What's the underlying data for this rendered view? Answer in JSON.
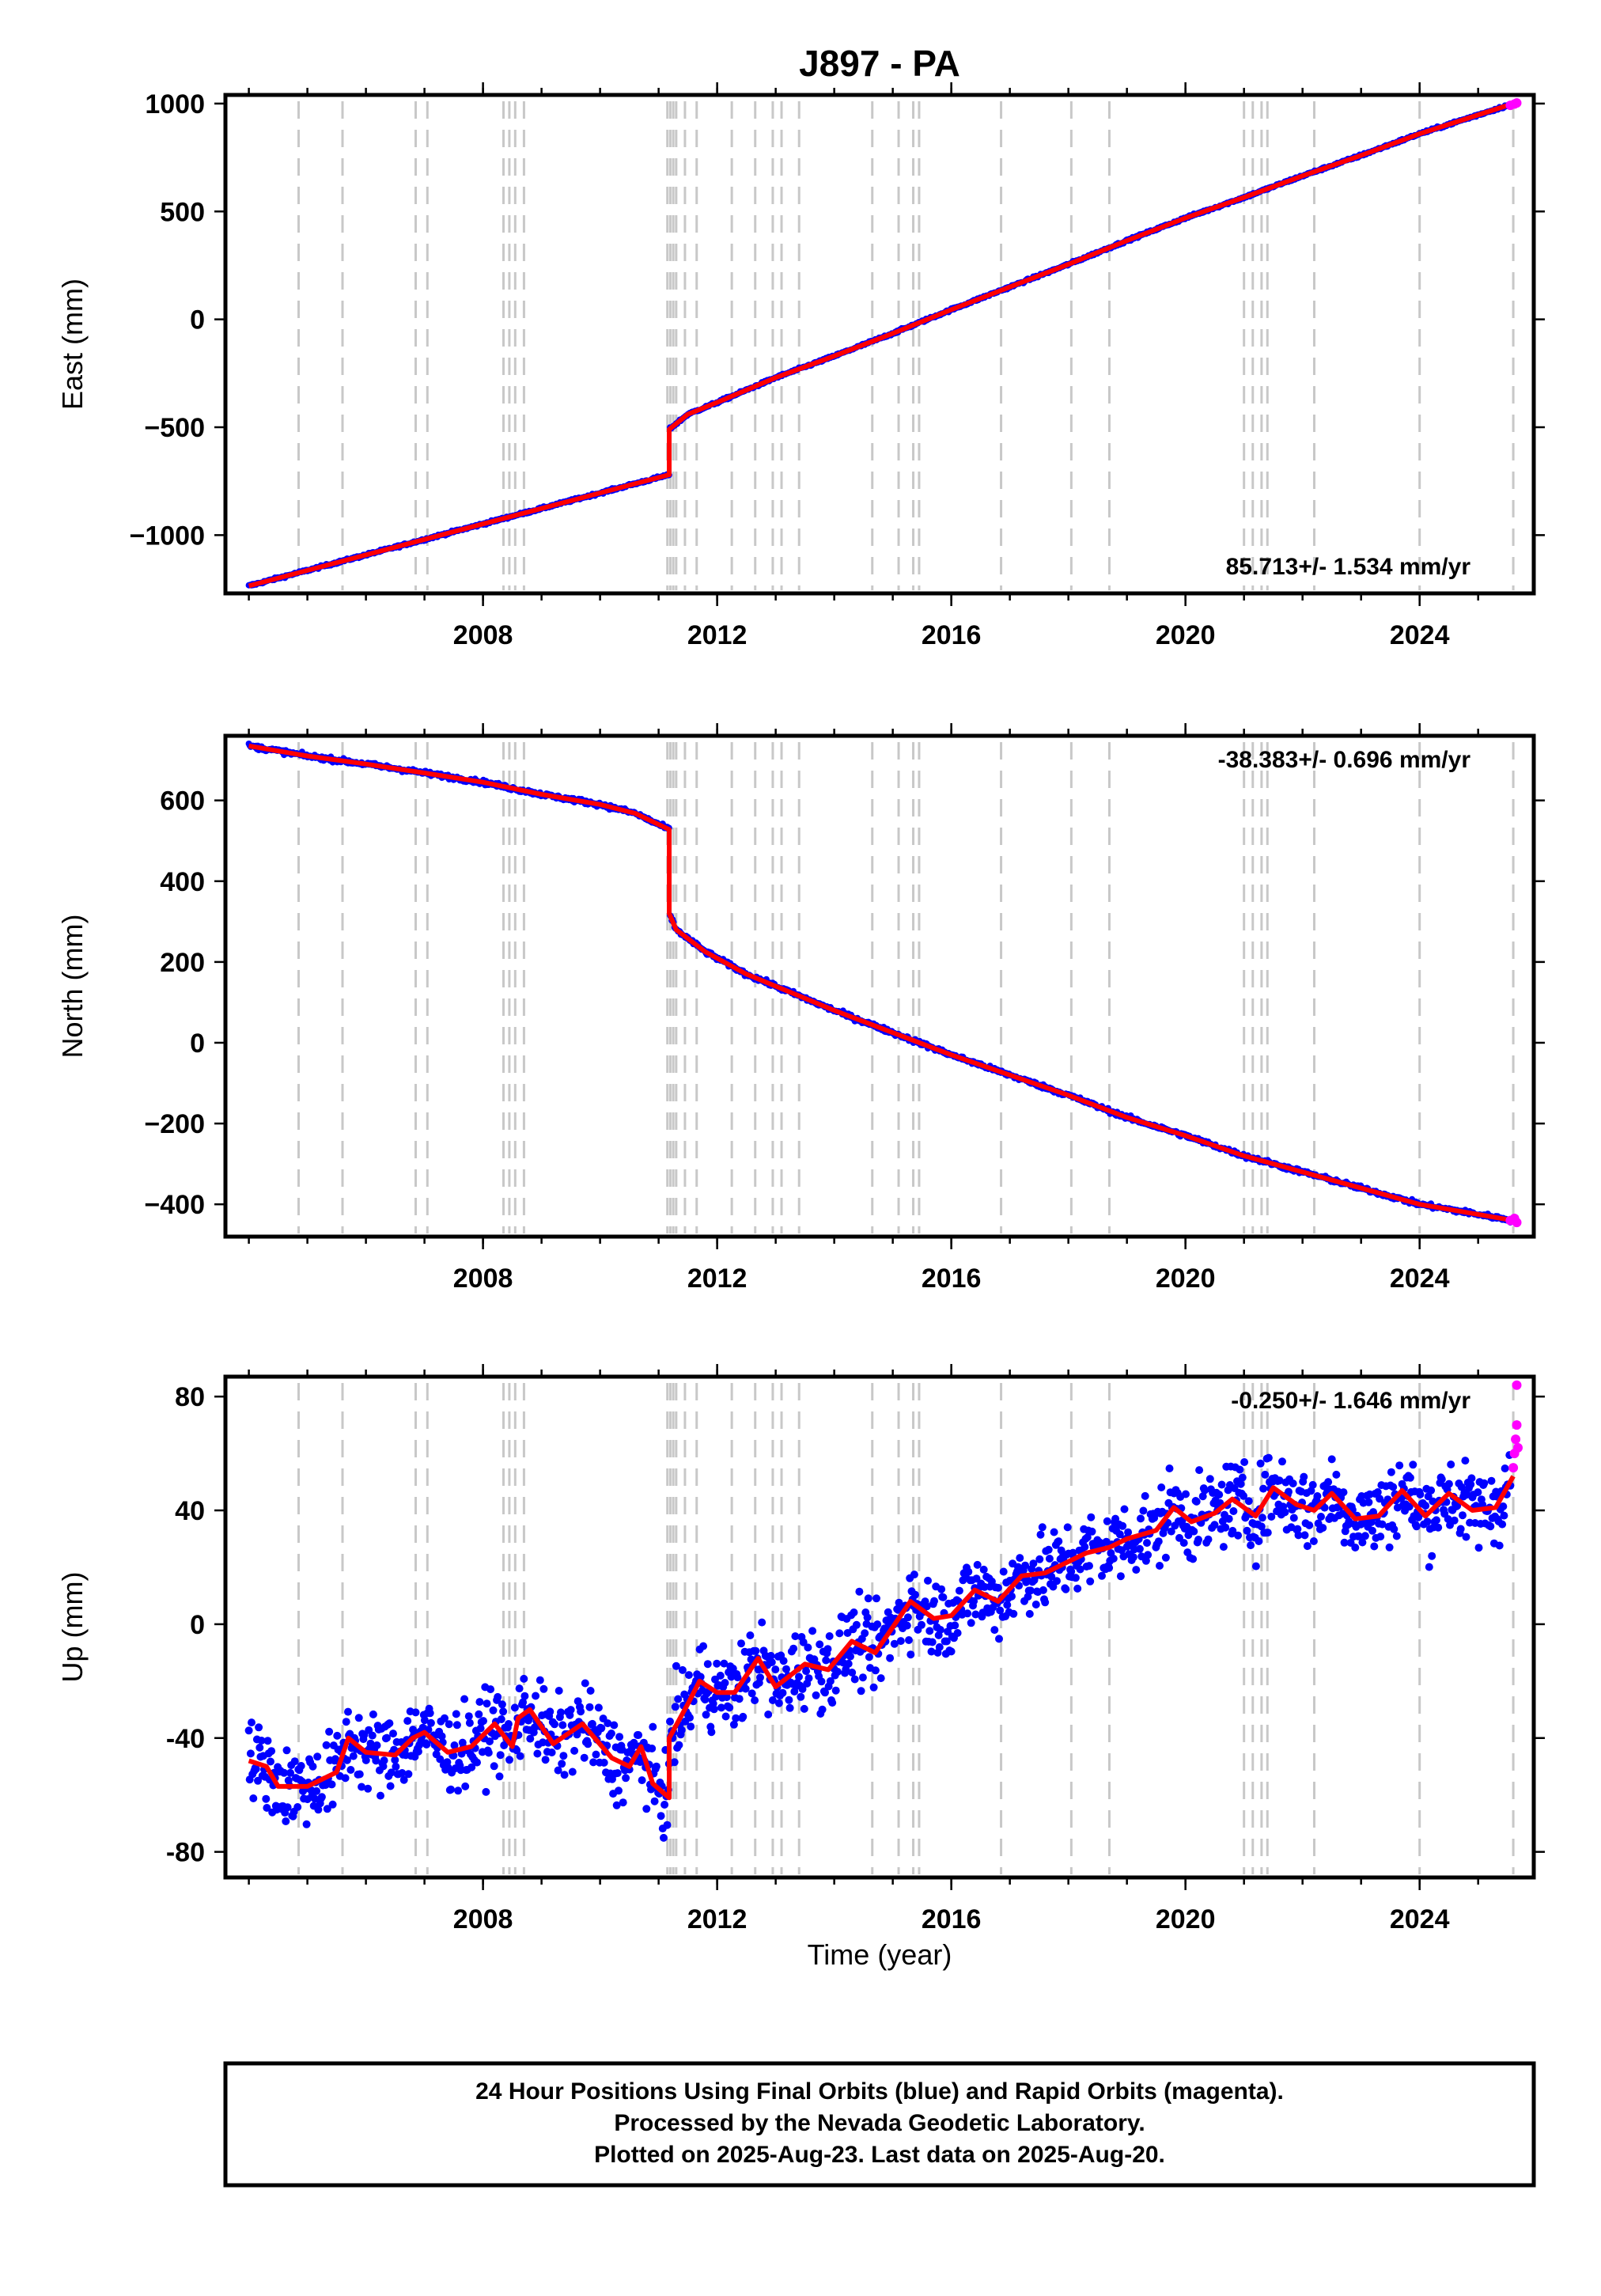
{
  "chart_data": {
    "type": "scatter",
    "title": "J897 - PA",
    "x_ticks": [
      2008,
      2012,
      2016,
      2020,
      2024
    ],
    "xlim": [
      2003.6,
      2025.95
    ],
    "xlabel": "Time (year)",
    "event_lines": [
      2004.85,
      2005.6,
      2006.85,
      2007.05,
      2008.35,
      2008.45,
      2008.55,
      2008.7,
      2011.15,
      2011.2,
      2011.25,
      2011.3,
      2011.45,
      2011.65,
      2012.25,
      2012.65,
      2012.95,
      2013.1,
      2013.4,
      2014.65,
      2015.1,
      2015.35,
      2015.45,
      2016.85,
      2018.05,
      2018.7,
      2021.0,
      2021.15,
      2021.3,
      2021.4,
      2022.2,
      2024.0,
      2025.6
    ],
    "panels": [
      {
        "name": "east",
        "ylabel": "East (mm)",
        "ylim": [
          -1270,
          1040
        ],
        "y_ticks": [
          1000,
          500,
          0,
          -500,
          -1000
        ],
        "y_tick_labels": [
          "1000",
          "500",
          "0",
          "−500",
          "−1000"
        ],
        "rate_label": "85.713+/- 1.534 mm/yr",
        "rate_position": "bottom-right",
        "model_points": [
          [
            2004.0,
            -1235
          ],
          [
            2011.18,
            -720
          ],
          [
            2011.18,
            -510
          ],
          [
            2011.5,
            -440
          ],
          [
            2012.0,
            -385
          ],
          [
            2013.0,
            -270
          ],
          [
            2014.0,
            -170
          ],
          [
            2015.0,
            -65
          ],
          [
            2016.0,
            45
          ],
          [
            2017.0,
            150
          ],
          [
            2018.0,
            255
          ],
          [
            2019.0,
            365
          ],
          [
            2020.0,
            470
          ],
          [
            2021.0,
            565
          ],
          [
            2022.0,
            665
          ],
          [
            2023.0,
            760
          ],
          [
            2024.0,
            860
          ],
          [
            2025.6,
            1000
          ]
        ],
        "rapid_points": [
          [
            2025.55,
            992
          ],
          [
            2025.62,
            998
          ],
          [
            2025.66,
            1003
          ]
        ]
      },
      {
        "name": "north",
        "ylabel": "North (mm)",
        "ylim": [
          -480,
          760
        ],
        "y_ticks": [
          600,
          400,
          200,
          0,
          -200,
          -400
        ],
        "y_tick_labels": [
          "600",
          "400",
          "200",
          "0",
          "−200",
          "−400"
        ],
        "rate_label": "-38.383+/- 0.696 mm/yr",
        "rate_position": "top-right",
        "model_points": [
          [
            2004.0,
            735
          ],
          [
            2005.0,
            710
          ],
          [
            2006.0,
            690
          ],
          [
            2007.0,
            668
          ],
          [
            2008.0,
            645
          ],
          [
            2009.0,
            615
          ],
          [
            2010.0,
            590
          ],
          [
            2010.6,
            568
          ],
          [
            2011.18,
            528
          ],
          [
            2011.18,
            320
          ],
          [
            2011.3,
            280
          ],
          [
            2011.8,
            225
          ],
          [
            2012.5,
            170
          ],
          [
            2013.0,
            140
          ],
          [
            2014.0,
            80
          ],
          [
            2015.0,
            25
          ],
          [
            2016.0,
            -30
          ],
          [
            2017.0,
            -80
          ],
          [
            2018.0,
            -130
          ],
          [
            2019.0,
            -185
          ],
          [
            2020.0,
            -230
          ],
          [
            2021.0,
            -280
          ],
          [
            2022.0,
            -320
          ],
          [
            2023.0,
            -360
          ],
          [
            2024.0,
            -400
          ],
          [
            2025.6,
            -440
          ]
        ],
        "rapid_points": [
          [
            2025.55,
            -440
          ],
          [
            2025.62,
            -435
          ],
          [
            2025.66,
            -445
          ]
        ]
      },
      {
        "name": "up",
        "ylabel": "Up (mm)",
        "ylim": [
          -89,
          87
        ],
        "y_ticks": [
          80,
          40,
          0,
          -40,
          -80
        ],
        "y_tick_labels": [
          "80",
          "40",
          "0",
          "-40",
          "-80"
        ],
        "rate_label": "-0.250+/- 1.646 mm/yr",
        "rate_position": "top-right",
        "model_points": [
          [
            2004.0,
            -48
          ],
          [
            2004.3,
            -50
          ],
          [
            2004.5,
            -57
          ],
          [
            2005.0,
            -57
          ],
          [
            2005.5,
            -52
          ],
          [
            2005.7,
            -40
          ],
          [
            2006.0,
            -45
          ],
          [
            2006.5,
            -46
          ],
          [
            2006.8,
            -40
          ],
          [
            2007.0,
            -38
          ],
          [
            2007.4,
            -45
          ],
          [
            2007.8,
            -43
          ],
          [
            2008.2,
            -35
          ],
          [
            2008.5,
            -43
          ],
          [
            2008.6,
            -33
          ],
          [
            2008.8,
            -30
          ],
          [
            2009.2,
            -42
          ],
          [
            2009.7,
            -35
          ],
          [
            2010.2,
            -47
          ],
          [
            2010.5,
            -50
          ],
          [
            2010.7,
            -43
          ],
          [
            2010.9,
            -56
          ],
          [
            2011.18,
            -61
          ],
          [
            2011.18,
            -40
          ],
          [
            2011.5,
            -28
          ],
          [
            2011.7,
            -20
          ],
          [
            2012.0,
            -24
          ],
          [
            2012.3,
            -24
          ],
          [
            2012.7,
            -12
          ],
          [
            2013.0,
            -22
          ],
          [
            2013.5,
            -14
          ],
          [
            2013.9,
            -16
          ],
          [
            2014.3,
            -6
          ],
          [
            2014.7,
            -10
          ],
          [
            2015.0,
            -1
          ],
          [
            2015.3,
            8
          ],
          [
            2015.7,
            2
          ],
          [
            2016.0,
            3
          ],
          [
            2016.4,
            12
          ],
          [
            2016.8,
            8
          ],
          [
            2017.2,
            17
          ],
          [
            2017.6,
            18
          ],
          [
            2018.0,
            22
          ],
          [
            2018.3,
            25
          ],
          [
            2018.7,
            27
          ],
          [
            2019.0,
            30
          ],
          [
            2019.5,
            33
          ],
          [
            2019.8,
            41
          ],
          [
            2020.1,
            36
          ],
          [
            2020.5,
            39
          ],
          [
            2020.8,
            44
          ],
          [
            2021.2,
            38
          ],
          [
            2021.5,
            48
          ],
          [
            2021.9,
            42
          ],
          [
            2022.2,
            40
          ],
          [
            2022.5,
            46
          ],
          [
            2022.9,
            37
          ],
          [
            2023.3,
            38
          ],
          [
            2023.7,
            47
          ],
          [
            2024.1,
            38
          ],
          [
            2024.5,
            46
          ],
          [
            2024.9,
            40
          ],
          [
            2025.3,
            41
          ],
          [
            2025.6,
            52
          ]
        ],
        "rapid_points": [
          [
            2025.6,
            55
          ],
          [
            2025.62,
            60
          ],
          [
            2025.64,
            65
          ],
          [
            2025.66,
            70
          ],
          [
            2025.66,
            84
          ],
          [
            2025.68,
            62
          ]
        ]
      }
    ],
    "series": [
      {
        "name": "Final Orbits",
        "color": "#0000ff"
      },
      {
        "name": "Rapid Orbits",
        "color": "#ff00ff"
      },
      {
        "name": "model",
        "color": "#ff0000"
      }
    ]
  },
  "footer": {
    "line1": "24 Hour Positions Using Final Orbits (blue) and Rapid Orbits (magenta).",
    "line2": "Processed by the Nevada Geodetic Laboratory.",
    "line3": "Plotted on 2025-Aug-23. Last data on 2025-Aug-20."
  }
}
